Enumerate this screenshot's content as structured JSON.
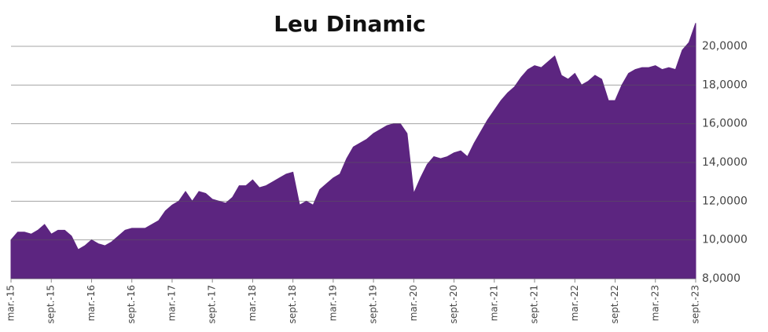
{
  "chart_data": {
    "type": "area",
    "title": "Leu Dinamic",
    "color": "#5c2580",
    "grid": true,
    "categories": [
      "mar.-15",
      null,
      null,
      null,
      null,
      null,
      "sept.-15",
      null,
      null,
      null,
      null,
      null,
      "mar.-16",
      null,
      null,
      null,
      null,
      null,
      "sept.-16",
      null,
      null,
      null,
      null,
      null,
      "mar.-17",
      null,
      null,
      null,
      null,
      null,
      "sept.-17",
      null,
      null,
      null,
      null,
      null,
      "mar.-18",
      null,
      null,
      null,
      null,
      null,
      "sept.-18",
      null,
      null,
      null,
      null,
      null,
      "mar.-19",
      null,
      null,
      null,
      null,
      null,
      "sept.-19",
      null,
      null,
      null,
      null,
      null,
      "mar.-20",
      null,
      null,
      null,
      null,
      null,
      "sept.-20",
      null,
      null,
      null,
      null,
      null,
      "mar.-21",
      null,
      null,
      null,
      null,
      null,
      "sept.-21",
      null,
      null,
      null,
      null,
      null,
      "mar.-22",
      null,
      null,
      null,
      null,
      null,
      "sept.-22",
      null,
      null,
      null,
      null,
      null,
      "mar.-23",
      null,
      null,
      null,
      null,
      null,
      "sept.-23"
    ],
    "values": [
      10.0,
      10.4,
      10.4,
      10.3,
      10.5,
      10.8,
      10.3,
      10.5,
      10.5,
      10.2,
      9.5,
      9.7,
      10.0,
      9.8,
      9.7,
      9.9,
      10.2,
      10.5,
      10.6,
      10.6,
      10.6,
      10.8,
      11.0,
      11.5,
      11.8,
      12.0,
      12.5,
      12.0,
      12.5,
      12.4,
      12.1,
      12.0,
      11.9,
      12.2,
      12.8,
      12.8,
      13.1,
      12.7,
      12.8,
      13.0,
      13.2,
      13.4,
      13.5,
      11.8,
      12.0,
      11.8,
      12.6,
      12.9,
      13.2,
      13.4,
      14.2,
      14.8,
      15.0,
      15.2,
      15.5,
      15.7,
      15.9,
      16.0,
      16.0,
      15.5,
      12.4,
      13.2,
      13.9,
      14.3,
      14.2,
      14.3,
      14.5,
      14.6,
      14.3,
      15.0,
      15.6,
      16.2,
      16.7,
      17.2,
      17.6,
      17.9,
      18.4,
      18.8,
      19.0,
      18.9,
      19.2,
      19.5,
      18.5,
      18.3,
      18.6,
      18.0,
      18.2,
      18.5,
      18.3,
      17.2,
      17.2,
      18.0,
      18.6,
      18.8,
      18.9,
      18.9,
      19.0,
      18.8,
      18.9,
      18.8,
      19.8,
      20.2,
      21.2
    ],
    "ylim": [
      8,
      21.3
    ],
    "yticks": [
      {
        "value": 8,
        "label": "8,0000"
      },
      {
        "value": 10,
        "label": "10,0000"
      },
      {
        "value": 12,
        "label": "12,0000"
      },
      {
        "value": 14,
        "label": "14,0000"
      },
      {
        "value": 16,
        "label": "16,0000"
      },
      {
        "value": 18,
        "label": "18,0000"
      },
      {
        "value": 20,
        "label": "20,0000"
      }
    ]
  }
}
